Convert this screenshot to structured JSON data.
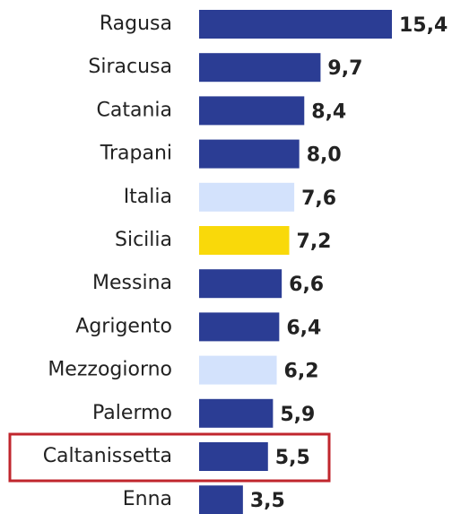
{
  "chart_data": {
    "type": "barh",
    "categories": [
      "Ragusa",
      "Siracusa",
      "Catania",
      "Trapani",
      "Italia",
      "Sicilia",
      "Messina",
      "Agrigento",
      "Mezzogiorno",
      "Palermo",
      "Caltanissetta",
      "Enna"
    ],
    "values": [
      15.4,
      9.7,
      8.4,
      8.0,
      7.6,
      7.2,
      6.6,
      6.4,
      6.2,
      5.9,
      5.5,
      3.5
    ],
    "value_labels": [
      "15,4",
      "9,7",
      "8,4",
      "8,0",
      "7,6",
      "7,2",
      "6,6",
      "6,4",
      "6,2",
      "5,9",
      "5,5",
      "3,5"
    ],
    "colors": [
      "#2b3d94",
      "#2b3d94",
      "#2b3d94",
      "#2b3d94",
      "#d3e2fc",
      "#f9d90a",
      "#2b3d94",
      "#2b3d94",
      "#d3e2fc",
      "#2b3d94",
      "#2b3d94",
      "#2b3d94"
    ]
  }
}
